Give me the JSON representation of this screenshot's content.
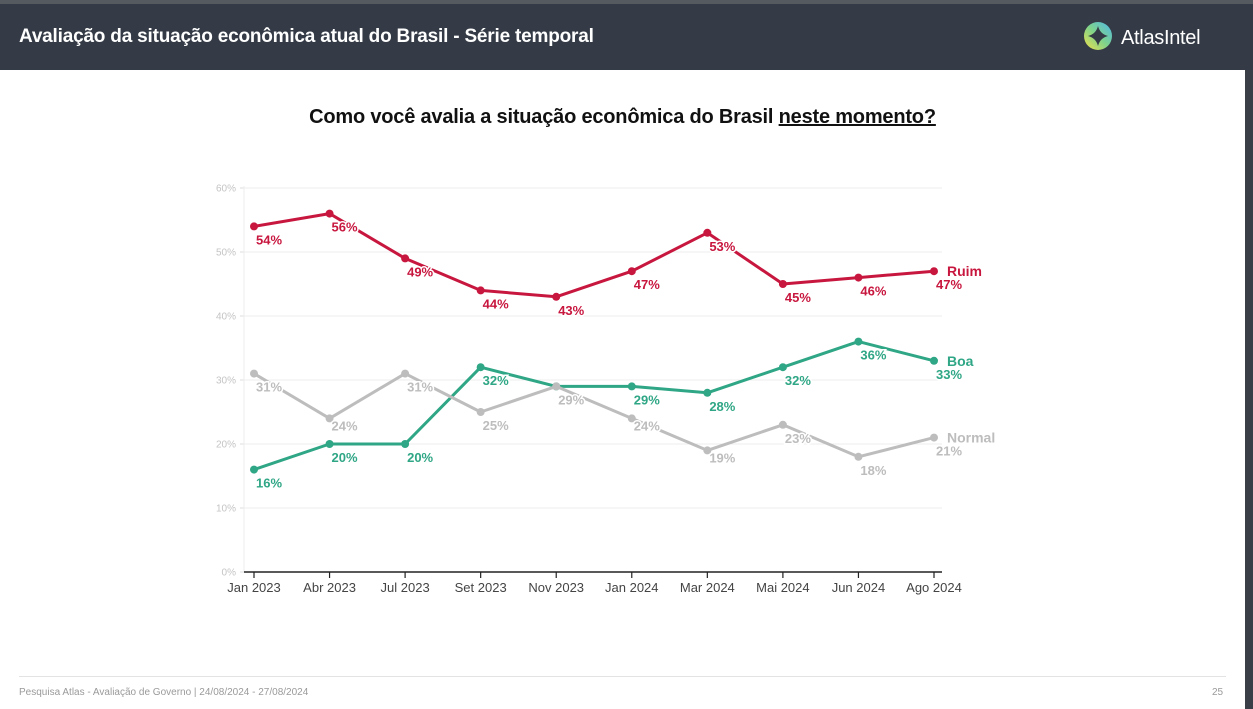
{
  "header": {
    "title": "Avaliação da situação econômica atual do Brasil - Série temporal",
    "logo_text": "AtlasIntel",
    "logo_icon": "atlas-compass-ring-icon"
  },
  "question": {
    "text_main": "Como você avalia a situação econômica do Brasil ",
    "text_underlined": "neste momento?"
  },
  "footer": {
    "source": "Pesquisa Atlas - Avaliação de Governo | 24/08/2024 - 27/08/2024",
    "page_number": "25"
  },
  "chart_data": {
    "type": "line",
    "title": "Como você avalia a situação econômica do Brasil neste momento?",
    "xlabel": "",
    "ylabel": "",
    "categories": [
      "Jan 2023",
      "Abr 2023",
      "Jul 2023",
      "Set 2023",
      "Nov 2023",
      "Jan 2024",
      "Mar 2024",
      "Mai 2024",
      "Jun 2024",
      "Ago 2024"
    ],
    "y_ticks": [
      "0%",
      "10%",
      "20%",
      "30%",
      "40%",
      "50%",
      "60%"
    ],
    "ylim": [
      0,
      60
    ],
    "grid": true,
    "legend_placement": "right-end-of-lines",
    "series": [
      {
        "name": "Ruim",
        "color": "#c8173f",
        "values": [
          54,
          56,
          49,
          44,
          43,
          47,
          53,
          45,
          46,
          47
        ],
        "labels": [
          "54%",
          "56%",
          "49%",
          "44%",
          "43%",
          "47%",
          "53%",
          "45%",
          "46%",
          "47%"
        ]
      },
      {
        "name": "Boa",
        "color": "#2fa685",
        "values": [
          16,
          20,
          20,
          32,
          29,
          29,
          28,
          32,
          36,
          33
        ],
        "labels": [
          "16%",
          "20%",
          "20%",
          "32%",
          "29%",
          "29%",
          "28%",
          "32%",
          "36%",
          "33%"
        ]
      },
      {
        "name": "Normal",
        "color": "#bdbdbd",
        "values": [
          31,
          24,
          31,
          25,
          29,
          24,
          19,
          23,
          18,
          21
        ],
        "labels": [
          "31%",
          "24%",
          "31%",
          "25%",
          "29%",
          "24%",
          "19%",
          "23%",
          "18%",
          "21%"
        ]
      }
    ]
  }
}
